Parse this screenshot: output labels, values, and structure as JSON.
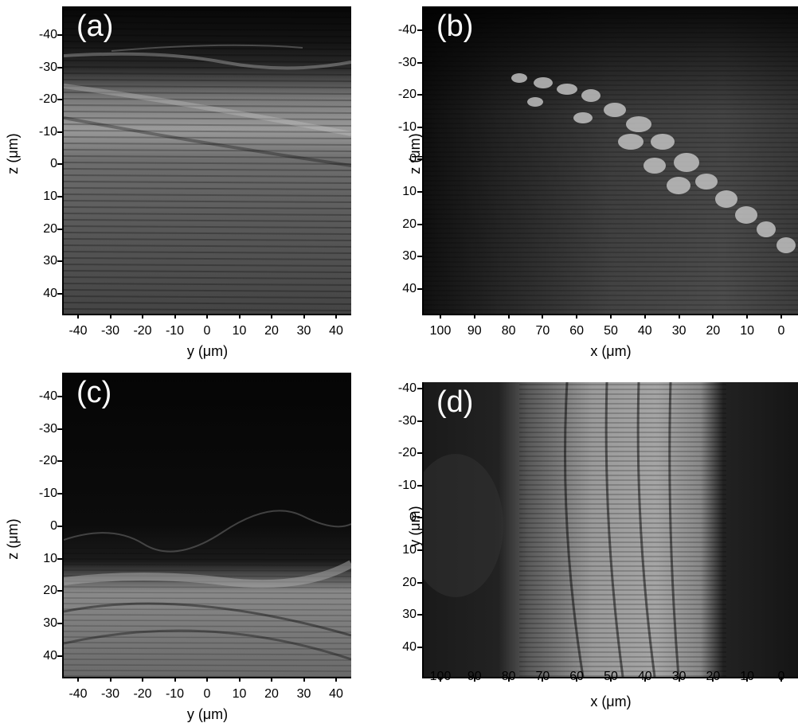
{
  "panels": [
    {
      "id": "a",
      "label": "(a)",
      "xlabel": "y (μm)",
      "ylabel": "z (μm)",
      "yticks": [
        "-40",
        "-30",
        "-20",
        "-10",
        "0",
        "10",
        "20",
        "30",
        "40"
      ],
      "xticks": [
        "-40",
        "-30",
        "-20",
        "-10",
        "0",
        "10",
        "20",
        "30",
        "40"
      ]
    },
    {
      "id": "b",
      "label": "(b)",
      "xlabel": "x (μm)",
      "ylabel": "z (μm)",
      "yticks": [
        "-40",
        "-30",
        "-20",
        "-10",
        "0",
        "10",
        "20",
        "30",
        "40"
      ],
      "xticks": [
        "100",
        "90",
        "80",
        "70",
        "60",
        "50",
        "40",
        "30",
        "20",
        "10",
        "0"
      ]
    },
    {
      "id": "c",
      "label": "(c)",
      "xlabel": "y (μm)",
      "ylabel": "z (μm)",
      "yticks": [
        "-40",
        "-30",
        "-20",
        "-10",
        "0",
        "10",
        "20",
        "30",
        "40"
      ],
      "xticks": [
        "-40",
        "-30",
        "-20",
        "-10",
        "0",
        "10",
        "20",
        "30",
        "40"
      ]
    },
    {
      "id": "d",
      "label": "(d)",
      "xlabel": "x (μm)",
      "ylabel": "y (μm)",
      "yticks": [
        "-40",
        "-30",
        "-20",
        "-10",
        "0",
        "10",
        "20",
        "30",
        "40"
      ],
      "xticks": [
        "100",
        "90",
        "80",
        "70",
        "60",
        "50",
        "40",
        "30",
        "20",
        "10",
        "0"
      ]
    }
  ]
}
